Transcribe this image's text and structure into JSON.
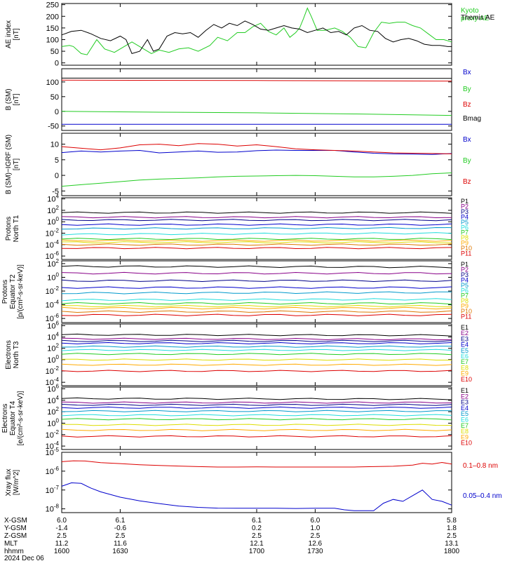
{
  "colors": {
    "black": "#000000",
    "red": "#dd0000",
    "green": "#22cc22",
    "blue": "#0000cc",
    "navy": "#000088",
    "purple": "#880088",
    "teal": "#0099cc",
    "cyan": "#22dddd",
    "yellow": "#dddd00",
    "orange": "#ffaa00",
    "dkorange": "#dd7700"
  },
  "time_axis": {
    "range": [
      1600,
      1800
    ],
    "ticks": [
      {
        "hhmm": "1600",
        "x_gsm": "6.0",
        "y_gsm": "-1.4",
        "z_gsm": "2.5",
        "mlt": "11.2"
      },
      {
        "hhmm": "1630",
        "x_gsm": "6.1",
        "y_gsm": "-0.6",
        "z_gsm": "2.5",
        "mlt": "11.6"
      },
      {
        "hhmm": "1700",
        "x_gsm": "6.1",
        "y_gsm": "0.2",
        "z_gsm": "2.5",
        "mlt": "12.1"
      },
      {
        "hhmm": "1730",
        "x_gsm": "6.0",
        "y_gsm": "1.0",
        "z_gsm": "2.5",
        "mlt": "12.6"
      },
      {
        "hhmm": "1800",
        "x_gsm": "5.8",
        "y_gsm": "1.8",
        "z_gsm": "2.5",
        "mlt": "13.1"
      }
    ],
    "row_labels": [
      "X-GSM",
      "Y-GSM",
      "Z-GSM",
      "MLT",
      "hhmm"
    ],
    "date": "2024 Dec 06"
  },
  "chart_data": [
    {
      "id": "ae",
      "type": "line",
      "ylabel": "AE index\n[nT]",
      "ylim": [
        -10,
        255
      ],
      "yticks": [
        0,
        50,
        100,
        150,
        200,
        250
      ],
      "series": [
        {
          "name": "Kyoto\nproxy AE",
          "color": "#22cc22",
          "x": [
            1600,
            1604,
            1606,
            1610,
            1613,
            1618,
            1622,
            1627,
            1632,
            1636,
            1640,
            1646,
            1650,
            1655,
            1660,
            1665,
            1670,
            1676,
            1680,
            1685,
            1690,
            1694,
            1698,
            1702,
            1706,
            1710,
            1714,
            1717,
            1720,
            1722,
            1724,
            1726,
            1728,
            1731,
            1735,
            1740,
            1744,
            1748,
            1752,
            1756,
            1760,
            1764,
            1768,
            1772,
            1776,
            1780,
            1784,
            1788,
            1792,
            1796,
            1800
          ],
          "y": [
            70,
            75,
            70,
            40,
            35,
            100,
            60,
            45,
            70,
            90,
            70,
            40,
            55,
            45,
            60,
            65,
            50,
            75,
            110,
            95,
            130,
            130,
            155,
            170,
            135,
            120,
            150,
            110,
            130,
            150,
            190,
            235,
            200,
            140,
            140,
            150,
            135,
            110,
            70,
            65,
            130,
            175,
            170,
            175,
            175,
            160,
            150,
            125,
            100,
            100,
            90
          ]
        },
        {
          "name": "Themis AE",
          "color": "#000000",
          "x": [
            1600,
            1605,
            1610,
            1615,
            1620,
            1625,
            1630,
            1633,
            1636,
            1640,
            1644,
            1647,
            1650,
            1654,
            1658,
            1662,
            1666,
            1670,
            1674,
            1678,
            1682,
            1686,
            1690,
            1694,
            1698,
            1702,
            1706,
            1710,
            1714,
            1718,
            1722,
            1726,
            1730,
            1734,
            1738,
            1742,
            1746,
            1750,
            1754,
            1758,
            1762,
            1766,
            1770,
            1774,
            1778,
            1782,
            1786,
            1790,
            1794,
            1798,
            1800
          ],
          "y": [
            120,
            135,
            140,
            125,
            105,
            95,
            115,
            100,
            40,
            50,
            100,
            50,
            60,
            115,
            130,
            125,
            130,
            110,
            140,
            165,
            150,
            170,
            160,
            180,
            165,
            145,
            140,
            150,
            160,
            150,
            145,
            130,
            140,
            150,
            130,
            135,
            120,
            150,
            160,
            140,
            135,
            105,
            90,
            100,
            105,
            95,
            80,
            75,
            75,
            70,
            70
          ]
        }
      ]
    },
    {
      "id": "bsm",
      "type": "line",
      "ylabel": "B (SM)\n[nT]",
      "ylim": [
        -65,
        145
      ],
      "yticks": [
        -50,
        0,
        50,
        100
      ],
      "series": [
        {
          "name": "Bx",
          "color": "#0000cc",
          "x": [
            1600,
            1800
          ],
          "y": [
            -44,
            -44
          ]
        },
        {
          "name": "By",
          "color": "#22cc22",
          "x": [
            1600,
            1650,
            1700,
            1750,
            1800
          ],
          "y": [
            0,
            -3,
            -5,
            -9,
            -14
          ]
        },
        {
          "name": "Bz",
          "color": "#dd0000",
          "x": [
            1600,
            1700,
            1800
          ],
          "y": [
            106,
            105,
            103
          ]
        },
        {
          "name": "Bmag",
          "color": "#000000",
          "x": [
            1600,
            1700,
            1800
          ],
          "y": [
            113,
            113,
            112
          ]
        }
      ]
    },
    {
      "id": "bigrf",
      "type": "line",
      "ylabel": "B (SM)−IGRF (SM)\n[nT]",
      "ylim": [
        -6.5,
        13.5
      ],
      "yticks": [
        -5,
        0,
        5,
        10
      ],
      "series": [
        {
          "name": "Bx",
          "color": "#0000cc",
          "x": [
            1600,
            1610,
            1620,
            1630,
            1640,
            1650,
            1660,
            1670,
            1680,
            1690,
            1700,
            1710,
            1720,
            1730,
            1740,
            1750,
            1760,
            1770,
            1780,
            1790,
            1800
          ],
          "y": [
            7.3,
            7.8,
            7.5,
            7.8,
            8.0,
            7.2,
            7.5,
            7.8,
            7.4,
            7.5,
            7.9,
            8.1,
            8.0,
            8.0,
            8.0,
            7.5,
            7.1,
            6.9,
            6.8,
            6.7,
            7.0
          ]
        },
        {
          "name": "By",
          "color": "#22cc22",
          "x": [
            1600,
            1610,
            1620,
            1630,
            1640,
            1650,
            1660,
            1670,
            1680,
            1690,
            1700,
            1710,
            1720,
            1730,
            1740,
            1750,
            1760,
            1770,
            1780,
            1790,
            1800
          ],
          "y": [
            -3.5,
            -3.0,
            -2.5,
            -2.0,
            -1.5,
            -1.2,
            -1.0,
            -0.8,
            -0.5,
            -0.3,
            -0.2,
            -0.1,
            0.0,
            -0.1,
            -0.3,
            -0.5,
            -0.5,
            -0.3,
            0.0,
            0.5,
            0.8
          ]
        },
        {
          "name": "Bz",
          "color": "#dd0000",
          "x": [
            1600,
            1610,
            1620,
            1630,
            1640,
            1650,
            1660,
            1670,
            1680,
            1690,
            1700,
            1710,
            1720,
            1730,
            1740,
            1750,
            1760,
            1770,
            1780,
            1790,
            1800
          ],
          "y": [
            9.2,
            8.7,
            8.2,
            8.8,
            9.8,
            10.0,
            9.5,
            10.2,
            10.0,
            9.4,
            9.8,
            9.2,
            8.5,
            8.2,
            8.0,
            7.8,
            7.5,
            7.2,
            7.1,
            7.0,
            6.9
          ]
        }
      ]
    },
    {
      "id": "pn",
      "type": "line",
      "ylabel": "Protons\nNorth T1",
      "ylog": true,
      "ylim": [
        -6.6,
        4.2
      ],
      "yticks": [
        {
          "exp": -6
        },
        {
          "exp": -4
        },
        {
          "exp": -2
        },
        {
          "exp": 0
        },
        {
          "exp": 2
        },
        {
          "exp": 4
        }
      ],
      "series": [
        {
          "name": "P1",
          "color": "#000000",
          "levels": [
            1.6,
            1.6
          ]
        },
        {
          "name": "P2",
          "color": "#880088",
          "levels": [
            0.8,
            0.8
          ]
        },
        {
          "name": "P3",
          "color": "#000088",
          "levels": [
            0.3,
            0.3
          ]
        },
        {
          "name": "P4",
          "color": "#0000cc",
          "levels": [
            -0.5,
            -0.5
          ]
        },
        {
          "name": "P5",
          "color": "#0099cc",
          "levels": [
            -1.2,
            -1.1
          ]
        },
        {
          "name": "P6",
          "color": "#22dddd",
          "levels": [
            -2.2,
            -2.0
          ]
        },
        {
          "name": "P7",
          "color": "#22cc22",
          "levels": [
            -3.0,
            -3.0
          ]
        },
        {
          "name": "P8",
          "color": "#dddd00",
          "levels": [
            -3.6,
            -3.6
          ]
        },
        {
          "name": "P9",
          "color": "#ffaa00",
          "levels": [
            -3.3,
            -3.3
          ]
        },
        {
          "name": "P10",
          "color": "#dd7700",
          "levels": [
            -4.0,
            -4.0
          ]
        },
        {
          "name": "P11",
          "color": "#dd0000",
          "levels": [
            -4.6,
            -4.6
          ]
        }
      ]
    },
    {
      "id": "pe",
      "type": "line",
      "ylabel": "Protons\nEquator T2\n[p/(cm²-s-sr-keV)]",
      "ylog": true,
      "ylim": [
        -6.6,
        2.4
      ],
      "yticks": [
        {
          "exp": -6
        },
        {
          "exp": -4
        },
        {
          "exp": -2
        },
        {
          "exp": 0
        },
        {
          "exp": 2
        }
      ],
      "series": [
        {
          "name": "P1",
          "color": "#000000",
          "levels": [
            1.6,
            1.5
          ]
        },
        {
          "name": "P2",
          "color": "#880088",
          "levels": [
            0.6,
            0.6
          ]
        },
        {
          "name": "P3",
          "color": "#000088",
          "levels": [
            -0.5,
            -0.5
          ]
        },
        {
          "name": "P4",
          "color": "#0000cc",
          "levels": [
            -1.5,
            -1.5
          ]
        },
        {
          "name": "P5",
          "color": "#0099cc",
          "levels": [
            -2.3,
            -2.2
          ]
        },
        {
          "name": "P6",
          "color": "#22dddd",
          "levels": [
            -3.3,
            -3.2
          ]
        },
        {
          "name": "P7",
          "color": "#22cc22",
          "levels": [
            -3.8,
            -3.8
          ]
        },
        {
          "name": "P8",
          "color": "#dddd00",
          "levels": [
            -4.2,
            -4.2
          ]
        },
        {
          "name": "P9",
          "color": "#ffaa00",
          "levels": [
            -4.5,
            -4.5
          ]
        },
        {
          "name": "P10",
          "color": "#dd7700",
          "levels": [
            -5.0,
            -5.0
          ]
        },
        {
          "name": "P11",
          "color": "#dd0000",
          "levels": [
            -5.5,
            -5.5
          ]
        }
      ]
    },
    {
      "id": "en",
      "type": "line",
      "ylabel": "Electrons\nNorth T3",
      "ylog": true,
      "ylim": [
        -4.6,
        6.3
      ],
      "yticks": [
        {
          "exp": -4
        },
        {
          "exp": -2
        },
        {
          "exp": 0
        },
        {
          "exp": 2
        },
        {
          "exp": 4
        },
        {
          "exp": 6
        }
      ],
      "series": [
        {
          "name": "E1",
          "color": "#000000",
          "levels": [
            4.4,
            4.3
          ]
        },
        {
          "name": "E2",
          "color": "#880088",
          "levels": [
            3.7,
            3.6
          ]
        },
        {
          "name": "E3",
          "color": "#000088",
          "levels": [
            3.3,
            3.3
          ]
        },
        {
          "name": "E4",
          "color": "#0000cc",
          "levels": [
            2.9,
            2.9
          ]
        },
        {
          "name": "E5",
          "color": "#0099cc",
          "levels": [
            2.3,
            2.3
          ]
        },
        {
          "name": "E6",
          "color": "#22dddd",
          "levels": [
            1.7,
            1.7
          ]
        },
        {
          "name": "E7",
          "color": "#22cc22",
          "levels": [
            1.0,
            1.0
          ]
        },
        {
          "name": "E8",
          "color": "#dddd00",
          "levels": [
            0.0,
            0.0
          ]
        },
        {
          "name": "E9",
          "color": "#ffaa00",
          "levels": [
            -0.9,
            -0.9
          ]
        },
        {
          "name": "E10",
          "color": "#dd0000",
          "levels": [
            -2.0,
            -2.0
          ]
        }
      ]
    },
    {
      "id": "ee",
      "type": "line",
      "ylabel": "Electrons\nEquator T4\n[e/(cm²-s-sr-keV)]",
      "ylog": true,
      "ylim": [
        -4.6,
        6.3
      ],
      "yticks": [
        {
          "exp": -4
        },
        {
          "exp": -2
        },
        {
          "exp": 0
        },
        {
          "exp": 2
        },
        {
          "exp": 4
        },
        {
          "exp": 6
        }
      ],
      "series": [
        {
          "name": "E1",
          "color": "#000000",
          "levels": [
            4.3,
            4.2
          ]
        },
        {
          "name": "E2",
          "color": "#880088",
          "levels": [
            3.6,
            3.6
          ]
        },
        {
          "name": "E3",
          "color": "#000088",
          "levels": [
            3.2,
            3.2
          ]
        },
        {
          "name": "E4",
          "color": "#0000cc",
          "levels": [
            2.7,
            2.7
          ]
        },
        {
          "name": "E5",
          "color": "#0099cc",
          "levels": [
            2.1,
            2.1
          ]
        },
        {
          "name": "E6",
          "color": "#22dddd",
          "levels": [
            1.4,
            1.4
          ]
        },
        {
          "name": "E7",
          "color": "#22cc22",
          "levels": [
            0.7,
            0.7
          ]
        },
        {
          "name": "E8",
          "color": "#dddd00",
          "levels": [
            -0.3,
            -0.3
          ]
        },
        {
          "name": "E9",
          "color": "#ffaa00",
          "levels": [
            -1.2,
            -1.2
          ]
        },
        {
          "name": "E10",
          "color": "#dd0000",
          "levels": [
            -2.3,
            -2.3
          ]
        }
      ]
    },
    {
      "id": "xray",
      "type": "line",
      "ylabel": "Xray flux\n[W/m^2]",
      "ylog": true,
      "ylim": [
        -8.2,
        -5.0
      ],
      "yticks": [
        {
          "exp": -8
        },
        {
          "exp": -7
        },
        {
          "exp": -6
        },
        {
          "exp": -5
        }
      ],
      "series": [
        {
          "name": "0.1–0.8 nm",
          "color": "#dd0000",
          "x": [
            1600,
            1606,
            1612,
            1620,
            1630,
            1640,
            1650,
            1660,
            1670,
            1680,
            1690,
            1700,
            1710,
            1720,
            1730,
            1740,
            1750,
            1760,
            1770,
            1780,
            1785,
            1790,
            1795,
            1800
          ],
          "y": [
            -5.5,
            -5.45,
            -5.46,
            -5.55,
            -5.6,
            -5.66,
            -5.7,
            -5.73,
            -5.76,
            -5.78,
            -5.78,
            -5.77,
            -5.78,
            -5.78,
            -5.78,
            -5.78,
            -5.78,
            -5.76,
            -5.74,
            -5.68,
            -5.58,
            -5.62,
            -5.54,
            -5.62
          ]
        },
        {
          "name": "0.05–0.4 nm",
          "color": "#0000cc",
          "x": [
            1600,
            1605,
            1610,
            1615,
            1620,
            1630,
            1640,
            1650,
            1660,
            1670,
            1680,
            1690,
            1700,
            1710,
            1720,
            1730,
            1740,
            1745,
            1750,
            1760,
            1765,
            1770,
            1775,
            1780,
            1785,
            1790,
            1795,
            1800
          ],
          "y": [
            -6.8,
            -6.62,
            -6.65,
            -6.9,
            -7.1,
            -7.38,
            -7.58,
            -7.72,
            -7.85,
            -7.92,
            -7.96,
            -7.97,
            -7.97,
            -7.97,
            -7.98,
            -7.97,
            -7.97,
            -8.05,
            -8.1,
            -8.1,
            -7.7,
            -7.5,
            -7.6,
            -7.3,
            -7.0,
            -7.5,
            -7.6,
            -7.8
          ]
        }
      ]
    }
  ]
}
